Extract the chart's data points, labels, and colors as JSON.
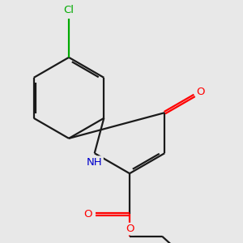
{
  "background_color": "#e8e8e8",
  "bond_color": "#1a1a1a",
  "atom_colors": {
    "O": "#ff0000",
    "N": "#0000cc",
    "Cl": "#00aa00",
    "C": "#1a1a1a"
  },
  "bond_lw": 1.6,
  "font_size": 9.5
}
